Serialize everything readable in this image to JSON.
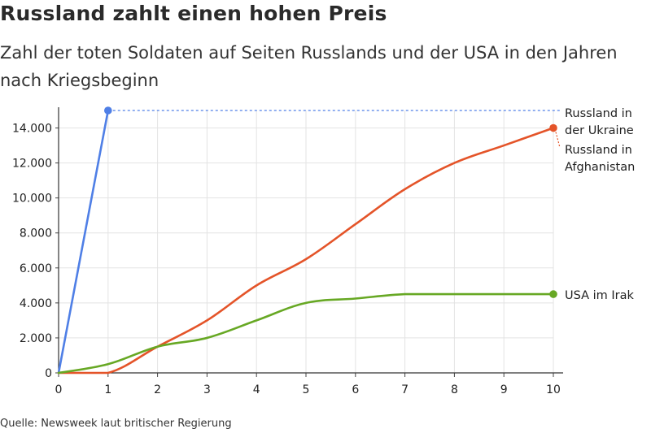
{
  "header": {
    "title": "Russland zahlt einen hohen Preis",
    "subtitle": "Zahl der toten Soldaten auf Seiten Russlands und der USA in den Jahren nach Kriegsbeginn"
  },
  "footer": {
    "source": "Quelle: Newsweek laut britischer Regierung"
  },
  "chart_data": {
    "type": "line",
    "title": "Russland zahlt einen hohen Preis",
    "subtitle": "Zahl der toten Soldaten auf Seiten Russlands und der USA in den Jahren nach Kriegsbeginn",
    "xlabel": "",
    "ylabel": "",
    "xlim": [
      0,
      10
    ],
    "ylim": [
      0,
      15000
    ],
    "x_ticks": [
      "0",
      "1",
      "2",
      "3",
      "4",
      "5",
      "6",
      "7",
      "8",
      "9",
      "10"
    ],
    "y_ticks": [
      "0",
      "2.000",
      "4.000",
      "6.000",
      "8.000",
      "10.000",
      "12.000",
      "14.000"
    ],
    "grid": true,
    "legend": "direct labels at right",
    "series": [
      {
        "name": "Russland in der Ukraine",
        "label_lines": [
          "Russland in",
          "der Ukraine"
        ],
        "color": "#4f7fe6",
        "points": [
          [
            0,
            0
          ],
          [
            1,
            15000
          ]
        ],
        "leader_line_value": 15000
      },
      {
        "name": "Russland in Afghanistan",
        "label_lines": [
          "Russland in",
          "Afghanistan"
        ],
        "color": "#e45429",
        "points": [
          [
            0,
            0
          ],
          [
            1,
            0
          ],
          [
            2,
            1500
          ],
          [
            3,
            3000
          ],
          [
            4,
            5000
          ],
          [
            5,
            6500
          ],
          [
            6,
            8500
          ],
          [
            7,
            10500
          ],
          [
            8,
            12000
          ],
          [
            9,
            13000
          ],
          [
            10,
            14000
          ]
        ]
      },
      {
        "name": "USA im Irak",
        "label_lines": [
          "USA im Irak"
        ],
        "color": "#67a824",
        "points": [
          [
            0,
            0
          ],
          [
            1,
            500
          ],
          [
            2,
            1500
          ],
          [
            3,
            2000
          ],
          [
            4,
            3000
          ],
          [
            5,
            4000
          ],
          [
            6,
            4250
          ],
          [
            7,
            4500
          ],
          [
            8,
            4500
          ],
          [
            9,
            4500
          ],
          [
            10,
            4500
          ]
        ]
      }
    ]
  }
}
